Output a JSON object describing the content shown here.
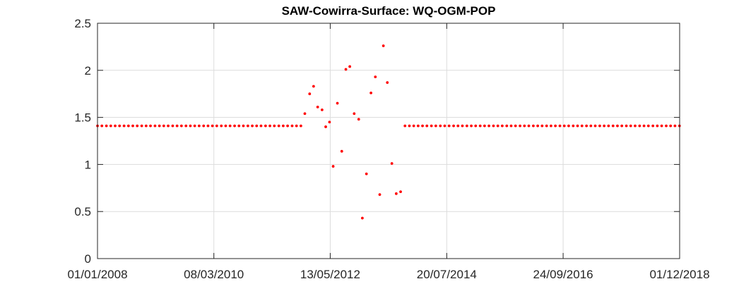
{
  "chart_data": {
    "type": "scatter",
    "title": "SAW-Cowirra-Surface: WQ-OGM-POP",
    "xlabel": "",
    "ylabel": "",
    "x_axis": {
      "kind": "date",
      "range": [
        "2008-01-01",
        "2018-12-01"
      ],
      "ticks": [
        {
          "date": "2008-01-01",
          "label": "01/01/2008"
        },
        {
          "date": "2010-03-08",
          "label": "08/03/2010"
        },
        {
          "date": "2012-05-13",
          "label": "13/05/2012"
        },
        {
          "date": "2014-07-20",
          "label": "20/07/2014"
        },
        {
          "date": "2016-09-24",
          "label": "24/09/2016"
        },
        {
          "date": "2018-12-01",
          "label": "01/12/2018"
        }
      ]
    },
    "y_axis": {
      "range": [
        0,
        2.5
      ],
      "ticks": [
        {
          "value": 0,
          "label": "0"
        },
        {
          "value": 0.5,
          "label": "0.5"
        },
        {
          "value": 1,
          "label": "1"
        },
        {
          "value": 1.5,
          "label": "1.5"
        },
        {
          "value": 2,
          "label": "2"
        },
        {
          "value": 2.5,
          "label": "2.5"
        }
      ]
    },
    "grid": true,
    "marker_color": "#ff0000",
    "series": [
      {
        "points": [
          {
            "x": "2008-01-01",
            "y": 1.41
          },
          {
            "x": "2008-01-31",
            "y": 1.41
          },
          {
            "x": "2008-03-02",
            "y": 1.41
          },
          {
            "x": "2008-04-01",
            "y": 1.41
          },
          {
            "x": "2008-05-01",
            "y": 1.41
          },
          {
            "x": "2008-05-31",
            "y": 1.41
          },
          {
            "x": "2008-07-01",
            "y": 1.41
          },
          {
            "x": "2008-07-31",
            "y": 1.41
          },
          {
            "x": "2008-08-30",
            "y": 1.41
          },
          {
            "x": "2008-09-29",
            "y": 1.41
          },
          {
            "x": "2008-10-30",
            "y": 1.41
          },
          {
            "x": "2008-11-29",
            "y": 1.41
          },
          {
            "x": "2008-12-29",
            "y": 1.41
          },
          {
            "x": "2009-01-29",
            "y": 1.41
          },
          {
            "x": "2009-02-28",
            "y": 1.41
          },
          {
            "x": "2009-03-30",
            "y": 1.41
          },
          {
            "x": "2009-04-29",
            "y": 1.41
          },
          {
            "x": "2009-05-30",
            "y": 1.41
          },
          {
            "x": "2009-06-29",
            "y": 1.41
          },
          {
            "x": "2009-07-29",
            "y": 1.41
          },
          {
            "x": "2009-08-29",
            "y": 1.41
          },
          {
            "x": "2009-09-28",
            "y": 1.41
          },
          {
            "x": "2009-10-28",
            "y": 1.41
          },
          {
            "x": "2009-11-27",
            "y": 1.41
          },
          {
            "x": "2009-12-28",
            "y": 1.41
          },
          {
            "x": "2010-01-27",
            "y": 1.41
          },
          {
            "x": "2010-02-26",
            "y": 1.41
          },
          {
            "x": "2010-03-28",
            "y": 1.41
          },
          {
            "x": "2010-04-28",
            "y": 1.41
          },
          {
            "x": "2010-05-28",
            "y": 1.41
          },
          {
            "x": "2010-06-27",
            "y": 1.41
          },
          {
            "x": "2010-07-28",
            "y": 1.41
          },
          {
            "x": "2010-08-27",
            "y": 1.41
          },
          {
            "x": "2010-09-26",
            "y": 1.41
          },
          {
            "x": "2010-10-27",
            "y": 1.41
          },
          {
            "x": "2010-11-26",
            "y": 1.41
          },
          {
            "x": "2010-12-26",
            "y": 1.41
          },
          {
            "x": "2011-01-25",
            "y": 1.41
          },
          {
            "x": "2011-02-25",
            "y": 1.41
          },
          {
            "x": "2011-03-27",
            "y": 1.41
          },
          {
            "x": "2011-04-26",
            "y": 1.41
          },
          {
            "x": "2011-05-27",
            "y": 1.41
          },
          {
            "x": "2011-06-26",
            "y": 1.41
          },
          {
            "x": "2011-07-26",
            "y": 1.41
          },
          {
            "x": "2011-08-26",
            "y": 1.41
          },
          {
            "x": "2011-09-25",
            "y": 1.41
          },
          {
            "x": "2011-10-25",
            "y": 1.41
          },
          {
            "x": "2011-11-21",
            "y": 1.54
          },
          {
            "x": "2011-12-24",
            "y": 1.75
          },
          {
            "x": "2012-01-20",
            "y": 1.83
          },
          {
            "x": "2012-02-17",
            "y": 1.61
          },
          {
            "x": "2012-03-18",
            "y": 1.58
          },
          {
            "x": "2012-04-12",
            "y": 1.4
          },
          {
            "x": "2012-05-08",
            "y": 1.45
          },
          {
            "x": "2012-06-02",
            "y": 0.98
          },
          {
            "x": "2012-07-01",
            "y": 1.65
          },
          {
            "x": "2012-07-31",
            "y": 1.14
          },
          {
            "x": "2012-08-28",
            "y": 2.01
          },
          {
            "x": "2012-09-24",
            "y": 2.04
          },
          {
            "x": "2012-10-24",
            "y": 1.54
          },
          {
            "x": "2012-11-24",
            "y": 1.48
          },
          {
            "x": "2012-12-19",
            "y": 0.43
          },
          {
            "x": "2013-01-16",
            "y": 0.9
          },
          {
            "x": "2013-02-16",
            "y": 1.76
          },
          {
            "x": "2013-03-18",
            "y": 1.93
          },
          {
            "x": "2013-04-17",
            "y": 0.68
          },
          {
            "x": "2013-05-12",
            "y": 2.26
          },
          {
            "x": "2013-06-08",
            "y": 1.87
          },
          {
            "x": "2013-07-09",
            "y": 1.01
          },
          {
            "x": "2013-08-08",
            "y": 0.69
          },
          {
            "x": "2013-09-07",
            "y": 0.71
          },
          {
            "x": "2013-10-07",
            "y": 1.41
          },
          {
            "x": "2013-11-06",
            "y": 1.41
          },
          {
            "x": "2013-12-06",
            "y": 1.41
          },
          {
            "x": "2014-01-05",
            "y": 1.41
          },
          {
            "x": "2014-02-04",
            "y": 1.41
          },
          {
            "x": "2014-03-06",
            "y": 1.41
          },
          {
            "x": "2014-04-06",
            "y": 1.41
          },
          {
            "x": "2014-05-06",
            "y": 1.41
          },
          {
            "x": "2014-06-06",
            "y": 1.41
          },
          {
            "x": "2014-07-06",
            "y": 1.41
          },
          {
            "x": "2014-08-05",
            "y": 1.41
          },
          {
            "x": "2014-09-05",
            "y": 1.41
          },
          {
            "x": "2014-10-05",
            "y": 1.41
          },
          {
            "x": "2014-11-04",
            "y": 1.41
          },
          {
            "x": "2014-12-05",
            "y": 1.41
          },
          {
            "x": "2015-01-04",
            "y": 1.41
          },
          {
            "x": "2015-02-03",
            "y": 1.41
          },
          {
            "x": "2015-03-06",
            "y": 1.41
          },
          {
            "x": "2015-04-05",
            "y": 1.41
          },
          {
            "x": "2015-05-05",
            "y": 1.41
          },
          {
            "x": "2015-06-05",
            "y": 1.41
          },
          {
            "x": "2015-07-05",
            "y": 1.41
          },
          {
            "x": "2015-08-04",
            "y": 1.41
          },
          {
            "x": "2015-09-04",
            "y": 1.41
          },
          {
            "x": "2015-10-04",
            "y": 1.41
          },
          {
            "x": "2015-11-03",
            "y": 1.41
          },
          {
            "x": "2015-12-04",
            "y": 1.41
          },
          {
            "x": "2016-01-03",
            "y": 1.41
          },
          {
            "x": "2016-02-02",
            "y": 1.41
          },
          {
            "x": "2016-03-04",
            "y": 1.41
          },
          {
            "x": "2016-04-03",
            "y": 1.41
          },
          {
            "x": "2016-05-03",
            "y": 1.41
          },
          {
            "x": "2016-06-03",
            "y": 1.41
          },
          {
            "x": "2016-07-03",
            "y": 1.41
          },
          {
            "x": "2016-08-02",
            "y": 1.41
          },
          {
            "x": "2016-09-02",
            "y": 1.41
          },
          {
            "x": "2016-10-02",
            "y": 1.41
          },
          {
            "x": "2016-11-01",
            "y": 1.41
          },
          {
            "x": "2016-12-02",
            "y": 1.41
          },
          {
            "x": "2017-01-01",
            "y": 1.41
          },
          {
            "x": "2017-01-31",
            "y": 1.41
          },
          {
            "x": "2017-03-03",
            "y": 1.41
          },
          {
            "x": "2017-04-02",
            "y": 1.41
          },
          {
            "x": "2017-05-02",
            "y": 1.41
          },
          {
            "x": "2017-06-02",
            "y": 1.41
          },
          {
            "x": "2017-07-02",
            "y": 1.41
          },
          {
            "x": "2017-08-01",
            "y": 1.41
          },
          {
            "x": "2017-09-01",
            "y": 1.41
          },
          {
            "x": "2017-10-01",
            "y": 1.41
          },
          {
            "x": "2017-10-31",
            "y": 1.41
          },
          {
            "x": "2017-12-01",
            "y": 1.41
          },
          {
            "x": "2017-12-31",
            "y": 1.41
          },
          {
            "x": "2018-01-30",
            "y": 1.41
          },
          {
            "x": "2018-03-02",
            "y": 1.41
          },
          {
            "x": "2018-04-01",
            "y": 1.41
          },
          {
            "x": "2018-05-01",
            "y": 1.41
          },
          {
            "x": "2018-06-01",
            "y": 1.41
          },
          {
            "x": "2018-07-01",
            "y": 1.41
          },
          {
            "x": "2018-07-31",
            "y": 1.41
          },
          {
            "x": "2018-08-31",
            "y": 1.41
          },
          {
            "x": "2018-09-30",
            "y": 1.41
          },
          {
            "x": "2018-10-30",
            "y": 1.41
          },
          {
            "x": "2018-11-30",
            "y": 1.41
          }
        ]
      }
    ]
  }
}
